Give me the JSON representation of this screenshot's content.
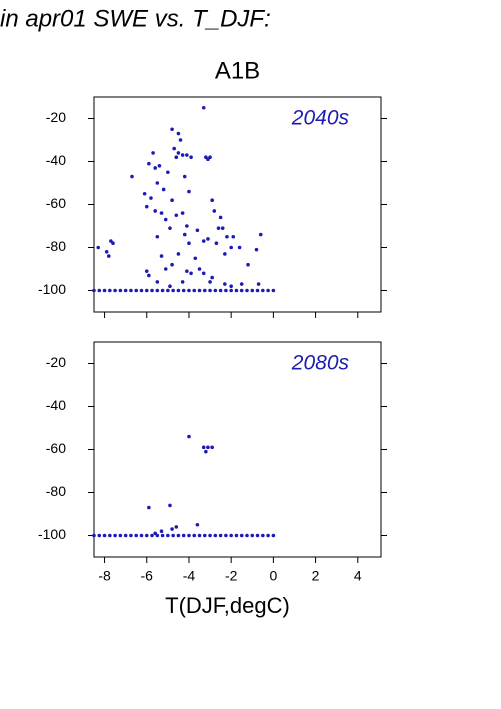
{
  "header": "in apr01 SWE vs. T_DJF:",
  "chart_data": [
    {
      "type": "scatter",
      "title": "A1B",
      "annotation": "2040s",
      "color": "#1c1cb4",
      "x": [
        -3.3,
        -4.8,
        -4.5,
        -4.4,
        -4.7,
        -4.5,
        -4.3,
        -4.1,
        -3.9,
        -4.6,
        -3.2,
        -3.0,
        -3.1,
        -5.7,
        -5.9,
        -5.6,
        -5.4,
        -6.7,
        -5.0,
        -4.2,
        -5.5,
        -5.2,
        -4.0,
        -6.1,
        -5.8,
        -4.8,
        -2.9,
        -6.0,
        -5.6,
        -5.3,
        -4.6,
        -4.3,
        -2.8,
        -2.5,
        -5.1,
        -4.1,
        -4.9,
        -3.6,
        -2.6,
        -2.4,
        -4.2,
        -5.5,
        -2.2,
        -1.9,
        -0.6,
        -3.1,
        -3.3,
        -2.7,
        -4.0,
        -2.0,
        -1.6,
        -0.8,
        -7.7,
        -7.6,
        -7.9,
        -7.8,
        -8.3,
        -4.5,
        -5.3,
        -2.3,
        -3.7,
        -1.2,
        -4.8,
        -6.0,
        -5.9,
        -5.1,
        -4.1,
        -3.5,
        -3.3,
        -2.9,
        -3.9,
        -3.0,
        -2.3,
        -1.5,
        -0.7,
        -4.3,
        -5.5,
        -4.9,
        -2.0,
        -8.5,
        -8.25,
        -8,
        -7.75,
        -7.5,
        -7.25,
        -7,
        -6.75,
        -6.5,
        -6.25,
        -6,
        -5.75,
        -5.5,
        -5.25,
        -5,
        -4.75,
        -4.5,
        -4.25,
        -4,
        -3.75,
        -3.5,
        -3.25,
        -3,
        -2.75,
        -2.5,
        -2.25,
        -2,
        -1.75,
        -1.5,
        -1.25,
        -1,
        -0.75,
        -0.5,
        -0.25,
        0
      ],
      "y": [
        -15,
        -25,
        -27,
        -30,
        -34,
        -36,
        -37,
        -37,
        -38,
        -38,
        -38,
        -38,
        -39,
        -36,
        -41,
        -43,
        -42,
        -47,
        -45,
        -47,
        -50,
        -53,
        -54,
        -55,
        -57,
        -58,
        -58,
        -61,
        -63,
        -64,
        -65,
        -64,
        -63,
        -66,
        -67,
        -70,
        -71,
        -72,
        -71,
        -71,
        -74,
        -75,
        -75,
        -75,
        -74,
        -76,
        -77,
        -78,
        -78,
        -80,
        -80,
        -81,
        -77,
        -78,
        -82,
        -84,
        -80,
        -83,
        -84,
        -83,
        -85,
        -88,
        -88,
        -91,
        -93,
        -90,
        -91,
        -90,
        -92,
        -94,
        -92,
        -96,
        -97,
        -97,
        -97,
        -96,
        -96,
        -98,
        -98,
        -100,
        -100,
        -100,
        -100,
        -100,
        -100,
        -100,
        -100,
        -100,
        -100,
        -100,
        -100,
        -100,
        -100,
        -100,
        -100,
        -100,
        -100,
        -100,
        -100,
        -100,
        -100,
        -100,
        -100,
        -100,
        -100,
        -100,
        -100,
        -100,
        -100,
        -100,
        -100,
        -100,
        -100,
        -100
      ],
      "xlim": [
        -8.5,
        5.1
      ],
      "ylim": [
        -110,
        -10
      ],
      "xticks": [
        -8,
        -6,
        -4,
        -2,
        0,
        2,
        4
      ],
      "yticks": [
        -20,
        -40,
        -60,
        -80,
        -100
      ]
    },
    {
      "type": "scatter",
      "annotation": "2080s",
      "color": "#1c1cb4",
      "xlabel": "T(DJF,degC)",
      "x": [
        -4.0,
        -3.3,
        -3.1,
        -2.9,
        -3.2,
        -5.9,
        -4.9,
        -4.6,
        -4.8,
        -3.6,
        -5.3,
        -5.6,
        -8.5,
        -8.25,
        -8,
        -7.75,
        -7.5,
        -7.25,
        -7,
        -6.75,
        -6.5,
        -6.25,
        -6,
        -5.75,
        -5.5,
        -5.25,
        -5,
        -4.75,
        -4.5,
        -4.25,
        -4,
        -3.75,
        -3.5,
        -3.25,
        -3,
        -2.75,
        -2.5,
        -2.25,
        -2,
        -1.75,
        -1.5,
        -1.25,
        -1,
        -0.75,
        -0.5,
        -0.25,
        0
      ],
      "y": [
        -54,
        -59,
        -59,
        -59,
        -61,
        -87,
        -86,
        -96,
        -97,
        -95,
        -98,
        -99,
        -100,
        -100,
        -100,
        -100,
        -100,
        -100,
        -100,
        -100,
        -100,
        -100,
        -100,
        -100,
        -100,
        -100,
        -100,
        -100,
        -100,
        -100,
        -100,
        -100,
        -100,
        -100,
        -100,
        -100,
        -100,
        -100,
        -100,
        -100,
        -100,
        -100,
        -100,
        -100,
        -100,
        -100,
        -100
      ],
      "xlim": [
        -8.5,
        5.1
      ],
      "ylim": [
        -110,
        -10
      ],
      "xticks": [
        -8,
        -6,
        -4,
        -2,
        0,
        2,
        4
      ],
      "yticks": [
        -20,
        -40,
        -60,
        -80,
        -100
      ]
    }
  ]
}
